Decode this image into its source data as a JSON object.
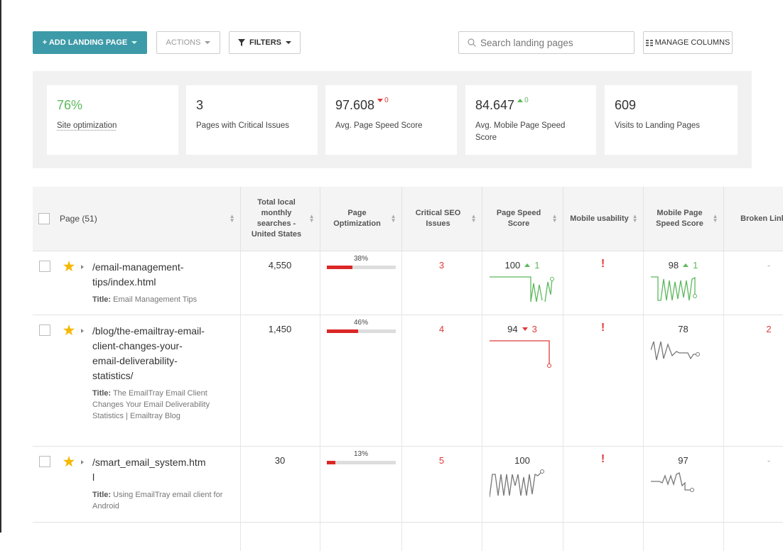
{
  "toolbar": {
    "add_button": "+ ADD LANDING PAGE",
    "actions_button": "ACTIONS",
    "filters_button": "FILTERS",
    "search_placeholder": "Search landing pages",
    "manage_columns_button": "MANAGE COLUMNS"
  },
  "stats": [
    {
      "value": "76%",
      "label": "Site optimization"
    },
    {
      "value": "3",
      "label": "Pages with Critical Issues"
    },
    {
      "value": "97.608",
      "change": "0",
      "direction": "down",
      "label": "Avg. Page Speed Score"
    },
    {
      "value": "84.647",
      "change": "0",
      "direction": "up",
      "label": "Avg. Mobile Page Speed Score"
    },
    {
      "value": "609",
      "label": "Visits to Landing Pages"
    }
  ],
  "table": {
    "columns": [
      "Page (51)",
      "Total local monthly searches - United States",
      "Page Optimization",
      "Critical SEO Issues",
      "Page Speed Score",
      "Mobile usability",
      "Mobile Page Speed Score",
      "Broken Links"
    ],
    "rows": [
      {
        "url": "/email-management-tips/index.html",
        "title_label": "Title:",
        "title": "Email Management Tips",
        "searches": "4,550",
        "optimization": {
          "value": 38,
          "label": "38%"
        },
        "critical_issues": "3",
        "page_speed": "100",
        "page_speed_change": "1",
        "page_speed_direction": "up",
        "mobile_usability": "!",
        "mobile_speed": "98",
        "mobile_speed_change": "1",
        "mobile_speed_direction": "up",
        "broken_links": "-"
      },
      {
        "url": "/blog/the-emailtray-email-client-changes-your-email-deliverability-statistics/",
        "title_label": "Title:",
        "title": "The EmailTray Email Client Changes Your Email Deliverability Statistics | Emailtray Blog",
        "searches": "1,450",
        "optimization": {
          "value": 46,
          "label": "46%"
        },
        "critical_issues": "4",
        "page_speed": "94",
        "page_speed_change": "3",
        "page_speed_direction": "down",
        "mobile_usability": "!",
        "mobile_speed": "78",
        "broken_links": "2"
      },
      {
        "url": "/smart_email_system.html",
        "title_label": "Title:",
        "title": "Using EmailTray email client for Android",
        "searches": "30",
        "optimization": {
          "value": 13,
          "label": "13%"
        },
        "critical_issues": "5",
        "page_speed": "100",
        "mobile_usability": "!",
        "mobile_speed": "97",
        "broken_links": "-"
      }
    ]
  }
}
